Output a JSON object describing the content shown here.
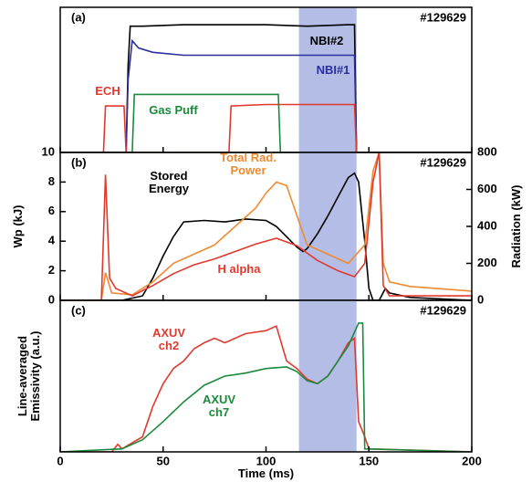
{
  "chart_data": [
    {
      "type": "line",
      "panel_label": "(a)",
      "annotation": "#129629",
      "xlim": [
        0,
        200
      ],
      "ylim": [
        0,
        1
      ],
      "highlight": [
        116,
        144
      ],
      "series": [
        {
          "name": "NBI#2",
          "color": "#000000",
          "x": [
            0,
            32,
            33,
            34,
            40,
            60,
            80,
            100,
            120,
            140,
            143,
            144,
            200
          ],
          "values": [
            0,
            0,
            0.6,
            0.87,
            0.87,
            0.88,
            0.88,
            0.88,
            0.87,
            0.88,
            0.88,
            0,
            0
          ]
        },
        {
          "name": "NBI#1",
          "color": "#2b2e9c",
          "x": [
            0,
            32,
            33,
            35,
            38,
            45,
            60,
            80,
            100,
            120,
            140,
            143,
            144,
            200
          ],
          "values": [
            0,
            0,
            0.5,
            0.77,
            0.72,
            0.69,
            0.67,
            0.67,
            0.67,
            0.67,
            0.67,
            0.67,
            0,
            0
          ]
        },
        {
          "name": "ECH",
          "color": "#e03a2f",
          "x": [
            0,
            21,
            22,
            31,
            32,
            82,
            83,
            100,
            143,
            144,
            200
          ],
          "values": [
            0,
            0,
            0.32,
            0.32,
            0,
            0,
            0.32,
            0.33,
            0.33,
            0,
            0
          ]
        },
        {
          "name": "Gas Puff",
          "color": "#1b8a3c",
          "x": [
            0,
            35,
            36,
            106,
            107,
            200
          ],
          "values": [
            0,
            0,
            0.4,
            0.4,
            0,
            0
          ]
        }
      ]
    },
    {
      "type": "line",
      "panel_label": "(b)",
      "annotation": "#129629",
      "xlim": [
        0,
        200
      ],
      "ylim": [
        0,
        10
      ],
      "yticks": [
        0,
        2,
        4,
        6,
        8,
        10
      ],
      "y2lim": [
        0,
        800
      ],
      "y2ticks": [
        0,
        200,
        400,
        600,
        800
      ],
      "ylabel": "Wp (kJ)",
      "y2label": "Radiation (kW)",
      "highlight": [
        116,
        144
      ],
      "series": [
        {
          "name": "Stored Energy",
          "color": "#000000",
          "x": [
            0,
            30,
            40,
            45,
            50,
            55,
            60,
            70,
            80,
            90,
            100,
            105,
            110,
            115,
            118,
            120,
            125,
            130,
            135,
            140,
            143,
            145,
            148,
            150,
            152,
            155,
            158,
            160,
            170,
            200
          ],
          "values": [
            0,
            0,
            0.3,
            1.5,
            3,
            4.3,
            5.3,
            5.4,
            5.3,
            5.5,
            5.4,
            5.0,
            4.3,
            3.6,
            3.3,
            3.5,
            4.5,
            5.7,
            7,
            8.3,
            8.6,
            8.0,
            4,
            0.8,
            0,
            0,
            0.8,
            0.5,
            0.2,
            0
          ]
        },
        {
          "name": "Total Rad. Power",
          "color": "#f08a30",
          "axis": "y2",
          "x": [
            0,
            20,
            22,
            25,
            35,
            45,
            55,
            65,
            75,
            85,
            95,
            100,
            105,
            110,
            115,
            120,
            130,
            140,
            148,
            152,
            155,
            157,
            160,
            170,
            200
          ],
          "values": [
            0,
            0,
            150,
            40,
            30,
            100,
            200,
            250,
            300,
            400,
            500,
            580,
            640,
            620,
            460,
            300,
            250,
            200,
            300,
            700,
            800,
            200,
            100,
            75,
            50
          ]
        },
        {
          "name": "H alpha",
          "color": "#e03a2f",
          "x": [
            0,
            20,
            22,
            24,
            27,
            35,
            45,
            55,
            65,
            75,
            85,
            95,
            105,
            115,
            125,
            135,
            143,
            148,
            152,
            155,
            157,
            160,
            200
          ],
          "values": [
            0,
            0,
            8.5,
            1.5,
            0.8,
            0.3,
            1,
            1.8,
            2.4,
            2.8,
            3.3,
            3.8,
            4.2,
            3.7,
            2.7,
            2.0,
            1.6,
            2.5,
            8,
            10,
            1,
            0.3,
            0.3
          ]
        }
      ]
    },
    {
      "type": "line",
      "panel_label": "(c)",
      "annotation": "#129629",
      "xlim": [
        0,
        200
      ],
      "ylim": [
        0,
        1
      ],
      "xticks": [
        0,
        50,
        100,
        150,
        200
      ],
      "xlabel": "Time (ms)",
      "ylabel": "Line-averaged Emissivity (a.u.)",
      "highlight": [
        116,
        144
      ],
      "series": [
        {
          "name": "AXUV ch2",
          "color": "#e03a2f",
          "x": [
            0,
            25,
            28,
            30,
            40,
            45,
            50,
            55,
            60,
            65,
            70,
            75,
            80,
            90,
            100,
            105,
            110,
            115,
            120,
            125,
            130,
            135,
            140,
            143,
            145,
            148,
            150,
            200
          ],
          "values": [
            0,
            0,
            0.05,
            0.02,
            0.1,
            0.3,
            0.45,
            0.55,
            0.6,
            0.68,
            0.72,
            0.75,
            0.72,
            0.78,
            0.8,
            0.83,
            0.6,
            0.55,
            0.48,
            0.45,
            0.5,
            0.6,
            0.72,
            0.75,
            0.2,
            0.1,
            0.02,
            0
          ]
        },
        {
          "name": "AXUV ch7",
          "color": "#1b8a3c",
          "x": [
            0,
            30,
            40,
            50,
            60,
            70,
            80,
            90,
            100,
            110,
            115,
            120,
            125,
            130,
            135,
            140,
            145,
            147,
            148,
            200
          ],
          "values": [
            0,
            0.02,
            0.08,
            0.2,
            0.33,
            0.44,
            0.5,
            0.52,
            0.55,
            0.56,
            0.53,
            0.47,
            0.45,
            0.5,
            0.6,
            0.7,
            0.85,
            0.85,
            0.02,
            0
          ]
        }
      ]
    }
  ]
}
